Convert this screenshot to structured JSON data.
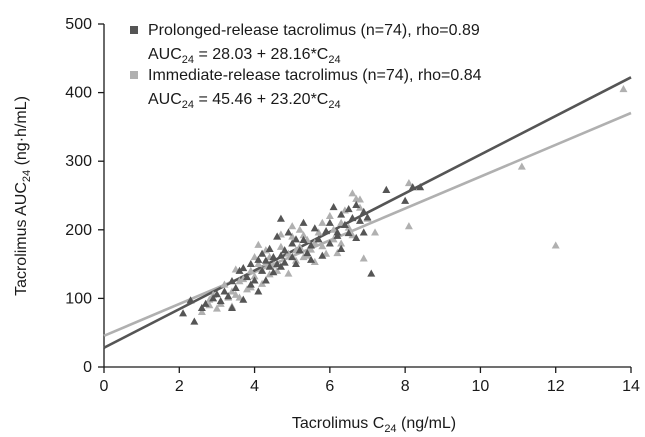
{
  "chart_data": {
    "type": "scatter",
    "xlabel": {
      "main": "Tacrolimus C",
      "sub": "24",
      "unit": " (ng/mL)"
    },
    "ylabel": {
      "main": "Tacrolimus AUC",
      "sub": "24",
      "unit": " (ng·h/mL)"
    },
    "xlim": [
      0,
      14
    ],
    "ylim": [
      0,
      500
    ],
    "x_ticks": [
      "0",
      "2",
      "4",
      "6",
      "8",
      "10",
      "12",
      "14"
    ],
    "y_ticks": [
      "0",
      "100",
      "200",
      "300",
      "400",
      "500"
    ],
    "grid": false,
    "legend_position": "top-left",
    "series": [
      {
        "name": "Prolonged-release tacrolimus (n=74), rho=0.89",
        "equation": {
          "lhs": "AUC",
          "lhs_sub": "24",
          "rhs": " = 28.03 + 28.16*C",
          "rhs_sub": "24"
        },
        "color": "#555555",
        "intercept": 28.03,
        "slope": 28.16,
        "points": [
          [
            2.1,
            78
          ],
          [
            2.3,
            97
          ],
          [
            2.4,
            66
          ],
          [
            2.6,
            86
          ],
          [
            2.7,
            92
          ],
          [
            2.9,
            100
          ],
          [
            3.0,
            106
          ],
          [
            3.1,
            96
          ],
          [
            3.2,
            110
          ],
          [
            3.3,
            103
          ],
          [
            3.4,
            125
          ],
          [
            3.4,
            86
          ],
          [
            3.5,
            115
          ],
          [
            3.6,
            140
          ],
          [
            3.7,
            98
          ],
          [
            3.8,
            131
          ],
          [
            3.9,
            150
          ],
          [
            3.9,
            120
          ],
          [
            4.0,
            126
          ],
          [
            4.1,
            156
          ],
          [
            4.1,
            110
          ],
          [
            4.2,
            165
          ],
          [
            4.2,
            140
          ],
          [
            4.3,
            155
          ],
          [
            4.3,
            126
          ],
          [
            4.4,
            172
          ],
          [
            4.4,
            146
          ],
          [
            4.5,
            160
          ],
          [
            4.5,
            138
          ],
          [
            4.6,
            150
          ],
          [
            4.6,
            190
          ],
          [
            4.7,
            162
          ],
          [
            4.7,
            146
          ],
          [
            4.7,
            216
          ],
          [
            4.8,
            170
          ],
          [
            4.8,
            152
          ],
          [
            4.9,
            196
          ],
          [
            5.0,
            160
          ],
          [
            5.0,
            180
          ],
          [
            5.1,
            150
          ],
          [
            5.2,
            170
          ],
          [
            5.3,
            185
          ],
          [
            5.3,
            210
          ],
          [
            5.4,
            166
          ],
          [
            5.5,
            177
          ],
          [
            5.5,
            156
          ],
          [
            5.6,
            202
          ],
          [
            5.7,
            186
          ],
          [
            5.8,
            162
          ],
          [
            5.9,
            198
          ],
          [
            6.0,
            210
          ],
          [
            6.0,
            180
          ],
          [
            6.1,
            233
          ],
          [
            6.2,
            191
          ],
          [
            6.3,
            222
          ],
          [
            6.3,
            172
          ],
          [
            6.4,
            207
          ],
          [
            6.5,
            195
          ],
          [
            6.5,
            230
          ],
          [
            6.6,
            217
          ],
          [
            6.7,
            188
          ],
          [
            6.7,
            236
          ],
          [
            6.8,
            213
          ],
          [
            6.9,
            226
          ],
          [
            6.9,
            196
          ],
          [
            7.0,
            218
          ],
          [
            7.1,
            136
          ],
          [
            7.5,
            258
          ],
          [
            8.0,
            242
          ],
          [
            8.2,
            262
          ],
          [
            8.4,
            262
          ],
          [
            6.2,
            196
          ],
          [
            5.1,
            186
          ],
          [
            3.7,
            144
          ]
        ]
      },
      {
        "name": "Immediate-release tacrolimus (n=74), rho=0.84",
        "equation": {
          "lhs": "AUC",
          "lhs_sub": "24",
          "rhs": " = 45.46 + 23.20*C",
          "rhs_sub": "24"
        },
        "color": "#b0b0b0",
        "intercept": 45.46,
        "slope": 23.2,
        "points": [
          [
            2.6,
            80
          ],
          [
            2.8,
            90
          ],
          [
            2.9,
            105
          ],
          [
            3.0,
            85
          ],
          [
            3.1,
            92
          ],
          [
            3.2,
            120
          ],
          [
            3.3,
            101
          ],
          [
            3.4,
            110
          ],
          [
            3.4,
            88
          ],
          [
            3.5,
            142
          ],
          [
            3.6,
            125
          ],
          [
            3.6,
            101
          ],
          [
            3.7,
            128
          ],
          [
            3.8,
            113
          ],
          [
            3.9,
            116
          ],
          [
            4.0,
            160
          ],
          [
            4.0,
            132
          ],
          [
            4.1,
            178
          ],
          [
            4.2,
            141
          ],
          [
            4.2,
            121
          ],
          [
            4.3,
            170
          ],
          [
            4.4,
            135
          ],
          [
            4.4,
            160
          ],
          [
            4.5,
            148
          ],
          [
            4.6,
            190
          ],
          [
            4.6,
            140
          ],
          [
            4.7,
            175
          ],
          [
            4.8,
            152
          ],
          [
            4.9,
            165
          ],
          [
            4.9,
            136
          ],
          [
            5.0,
            190
          ],
          [
            5.0,
            205
          ],
          [
            5.1,
            155
          ],
          [
            5.1,
            170
          ],
          [
            5.2,
            175
          ],
          [
            5.3,
            192
          ],
          [
            5.3,
            160
          ],
          [
            5.4,
            185
          ],
          [
            5.5,
            171
          ],
          [
            5.6,
            153
          ],
          [
            5.7,
            196
          ],
          [
            5.8,
            210
          ],
          [
            5.8,
            176
          ],
          [
            5.9,
            165
          ],
          [
            6.0,
            220
          ],
          [
            6.1,
            186
          ],
          [
            6.2,
            166
          ],
          [
            6.3,
            210
          ],
          [
            6.3,
            180
          ],
          [
            6.4,
            228
          ],
          [
            6.5,
            203
          ],
          [
            6.6,
            253
          ],
          [
            6.6,
            192
          ],
          [
            6.7,
            245
          ],
          [
            6.8,
            232
          ],
          [
            6.9,
            158
          ],
          [
            7.0,
            216
          ],
          [
            7.2,
            196
          ],
          [
            8.1,
            268
          ],
          [
            8.1,
            205
          ],
          [
            11.1,
            292
          ],
          [
            12.0,
            177
          ],
          [
            13.8,
            405
          ],
          [
            5.2,
            200
          ],
          [
            4.3,
            151
          ],
          [
            3.5,
            105
          ],
          [
            6.1,
            200
          ],
          [
            5.4,
            162
          ],
          [
            4.7,
            193
          ],
          [
            3.9,
            140
          ],
          [
            6.8,
            244
          ],
          [
            5.6,
            181
          ],
          [
            4.1,
            150
          ],
          [
            2.8,
            98
          ]
        ]
      }
    ]
  }
}
